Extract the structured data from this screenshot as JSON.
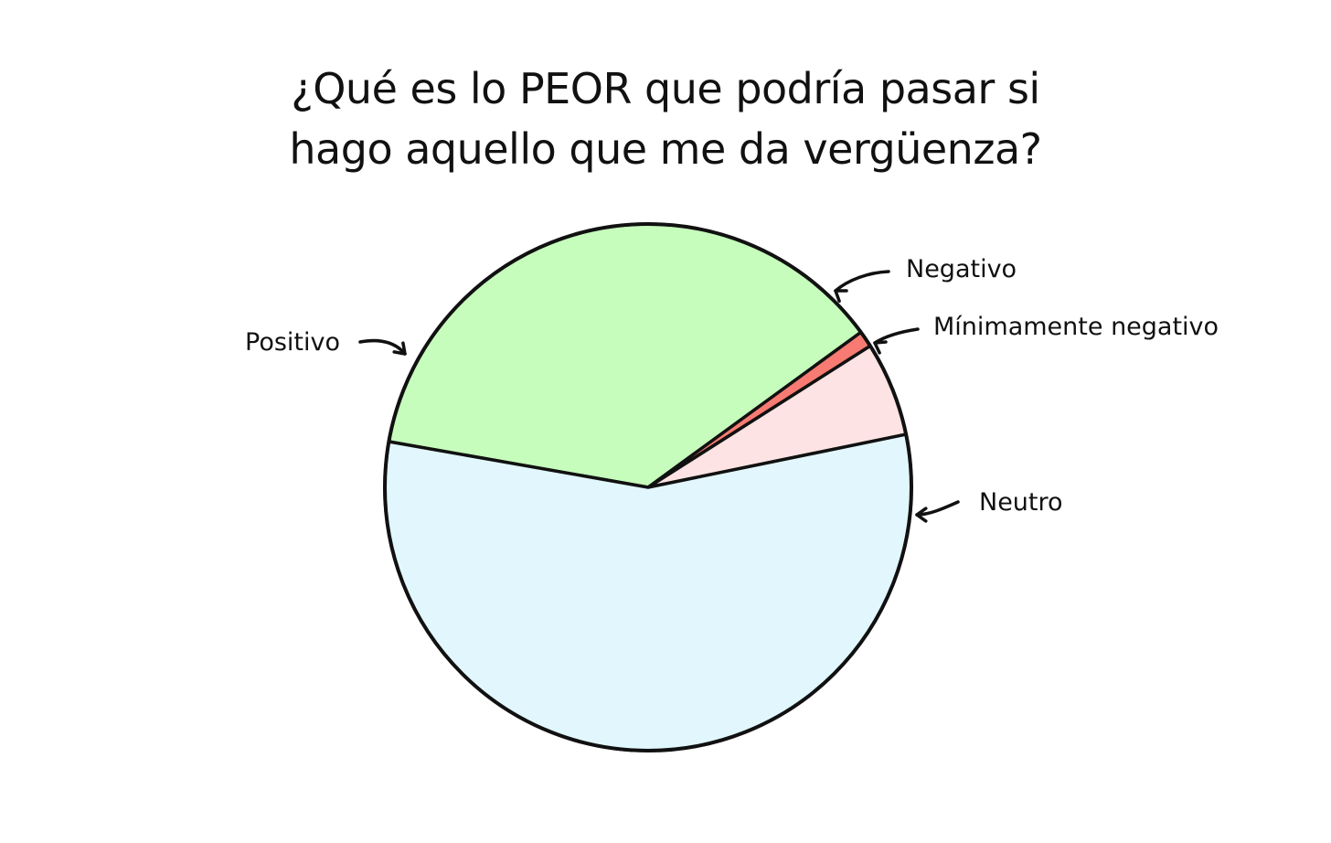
{
  "chart_data": {
    "type": "pie",
    "title": "¿Qué es lo PEOR que podría pasar si hago aquello que me da vergüenza?",
    "title_lines": [
      "¿Qué es lo PEOR que podría pasar si",
      "hago aquello que me da vergüenza?"
    ],
    "start_angle_deg": 170,
    "direction": "clockwise",
    "slices": [
      {
        "label": "Positivo",
        "value": 37.2,
        "color": "#c6fcbc"
      },
      {
        "label": "Negativo",
        "value": 1.0,
        "color": "#f77b72"
      },
      {
        "label": "Mínimamente negativo",
        "value": 5.8,
        "color": "#fde3e3"
      },
      {
        "label": "Neutro",
        "value": 56.0,
        "color": "#e1f7fd"
      }
    ],
    "outline_color": "#111111",
    "legend": "none"
  }
}
